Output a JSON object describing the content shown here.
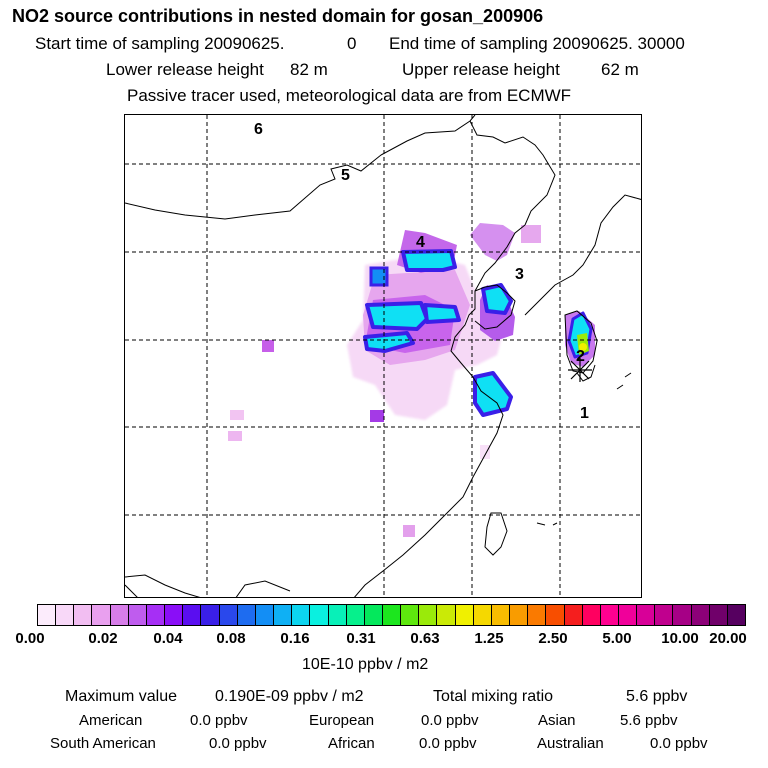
{
  "header": {
    "title": "NO2 source contributions in nested domain for gosan_200906",
    "start_label": "Start time of sampling 20090625.",
    "start_hour": "0",
    "end_label": "End time of sampling 20090625. 30000",
    "lower_label": "Lower release height",
    "lower_value": "82 m",
    "upper_label": "Upper release height",
    "upper_value": "62 m",
    "note": "Passive tracer used, meteorological data are from ECMWF"
  },
  "map": {
    "region_labels": [
      "1",
      "2",
      "3",
      "4",
      "5",
      "6"
    ],
    "receptor_marker": "asterisk",
    "background": "#ffffff",
    "coastline_color": "#000000",
    "grid_style": "dashed"
  },
  "colorbar": {
    "tick_labels": [
      "0.00",
      "0.02",
      "0.04",
      "0.08",
      "0.16",
      "0.31",
      "0.63",
      "1.25",
      "2.50",
      "5.00",
      "10.00",
      "20.00"
    ],
    "unit": "10E-10 ppbv / m2",
    "colors": [
      "#fcecfc",
      "#f8d8f8",
      "#f2bef2",
      "#e9a0ef",
      "#d77de9",
      "#bf5cee",
      "#a62ff5",
      "#8a0ef7",
      "#5a0ef0",
      "#3a1fe8",
      "#2a48ec",
      "#1e6cf0",
      "#138ef5",
      "#0fb0f4",
      "#0cd5f0",
      "#0af0e0",
      "#08f0b8",
      "#06f08c",
      "#04e85c",
      "#1ce61e",
      "#5ee80e",
      "#9aea0a",
      "#caea06",
      "#f0f000",
      "#f5d800",
      "#f8bc00",
      "#f99c00",
      "#fa7a00",
      "#f84e00",
      "#f51e1e",
      "#ff0060",
      "#ff0090",
      "#f0009a",
      "#d80098",
      "#c0008e",
      "#a60086",
      "#8c0078",
      "#70006a",
      "#560060"
    ]
  },
  "stats": {
    "max_label": "Maximum value",
    "max_value": "0.190E-09 ppbv / m2",
    "total_label": "Total mixing ratio",
    "total_value": "5.6 ppbv",
    "american_label": "American",
    "american_value": "0.0 ppbv",
    "european_label": "European",
    "european_value": "0.0 ppbv",
    "asian_label": "Asian",
    "asian_value": "5.6 ppbv",
    "south_american_label": "South American",
    "south_american_value": "0.0 ppbv",
    "african_label": "African",
    "african_value": "0.0 ppbv",
    "australian_label": "Australian",
    "australian_value": "0.0 ppbv"
  }
}
